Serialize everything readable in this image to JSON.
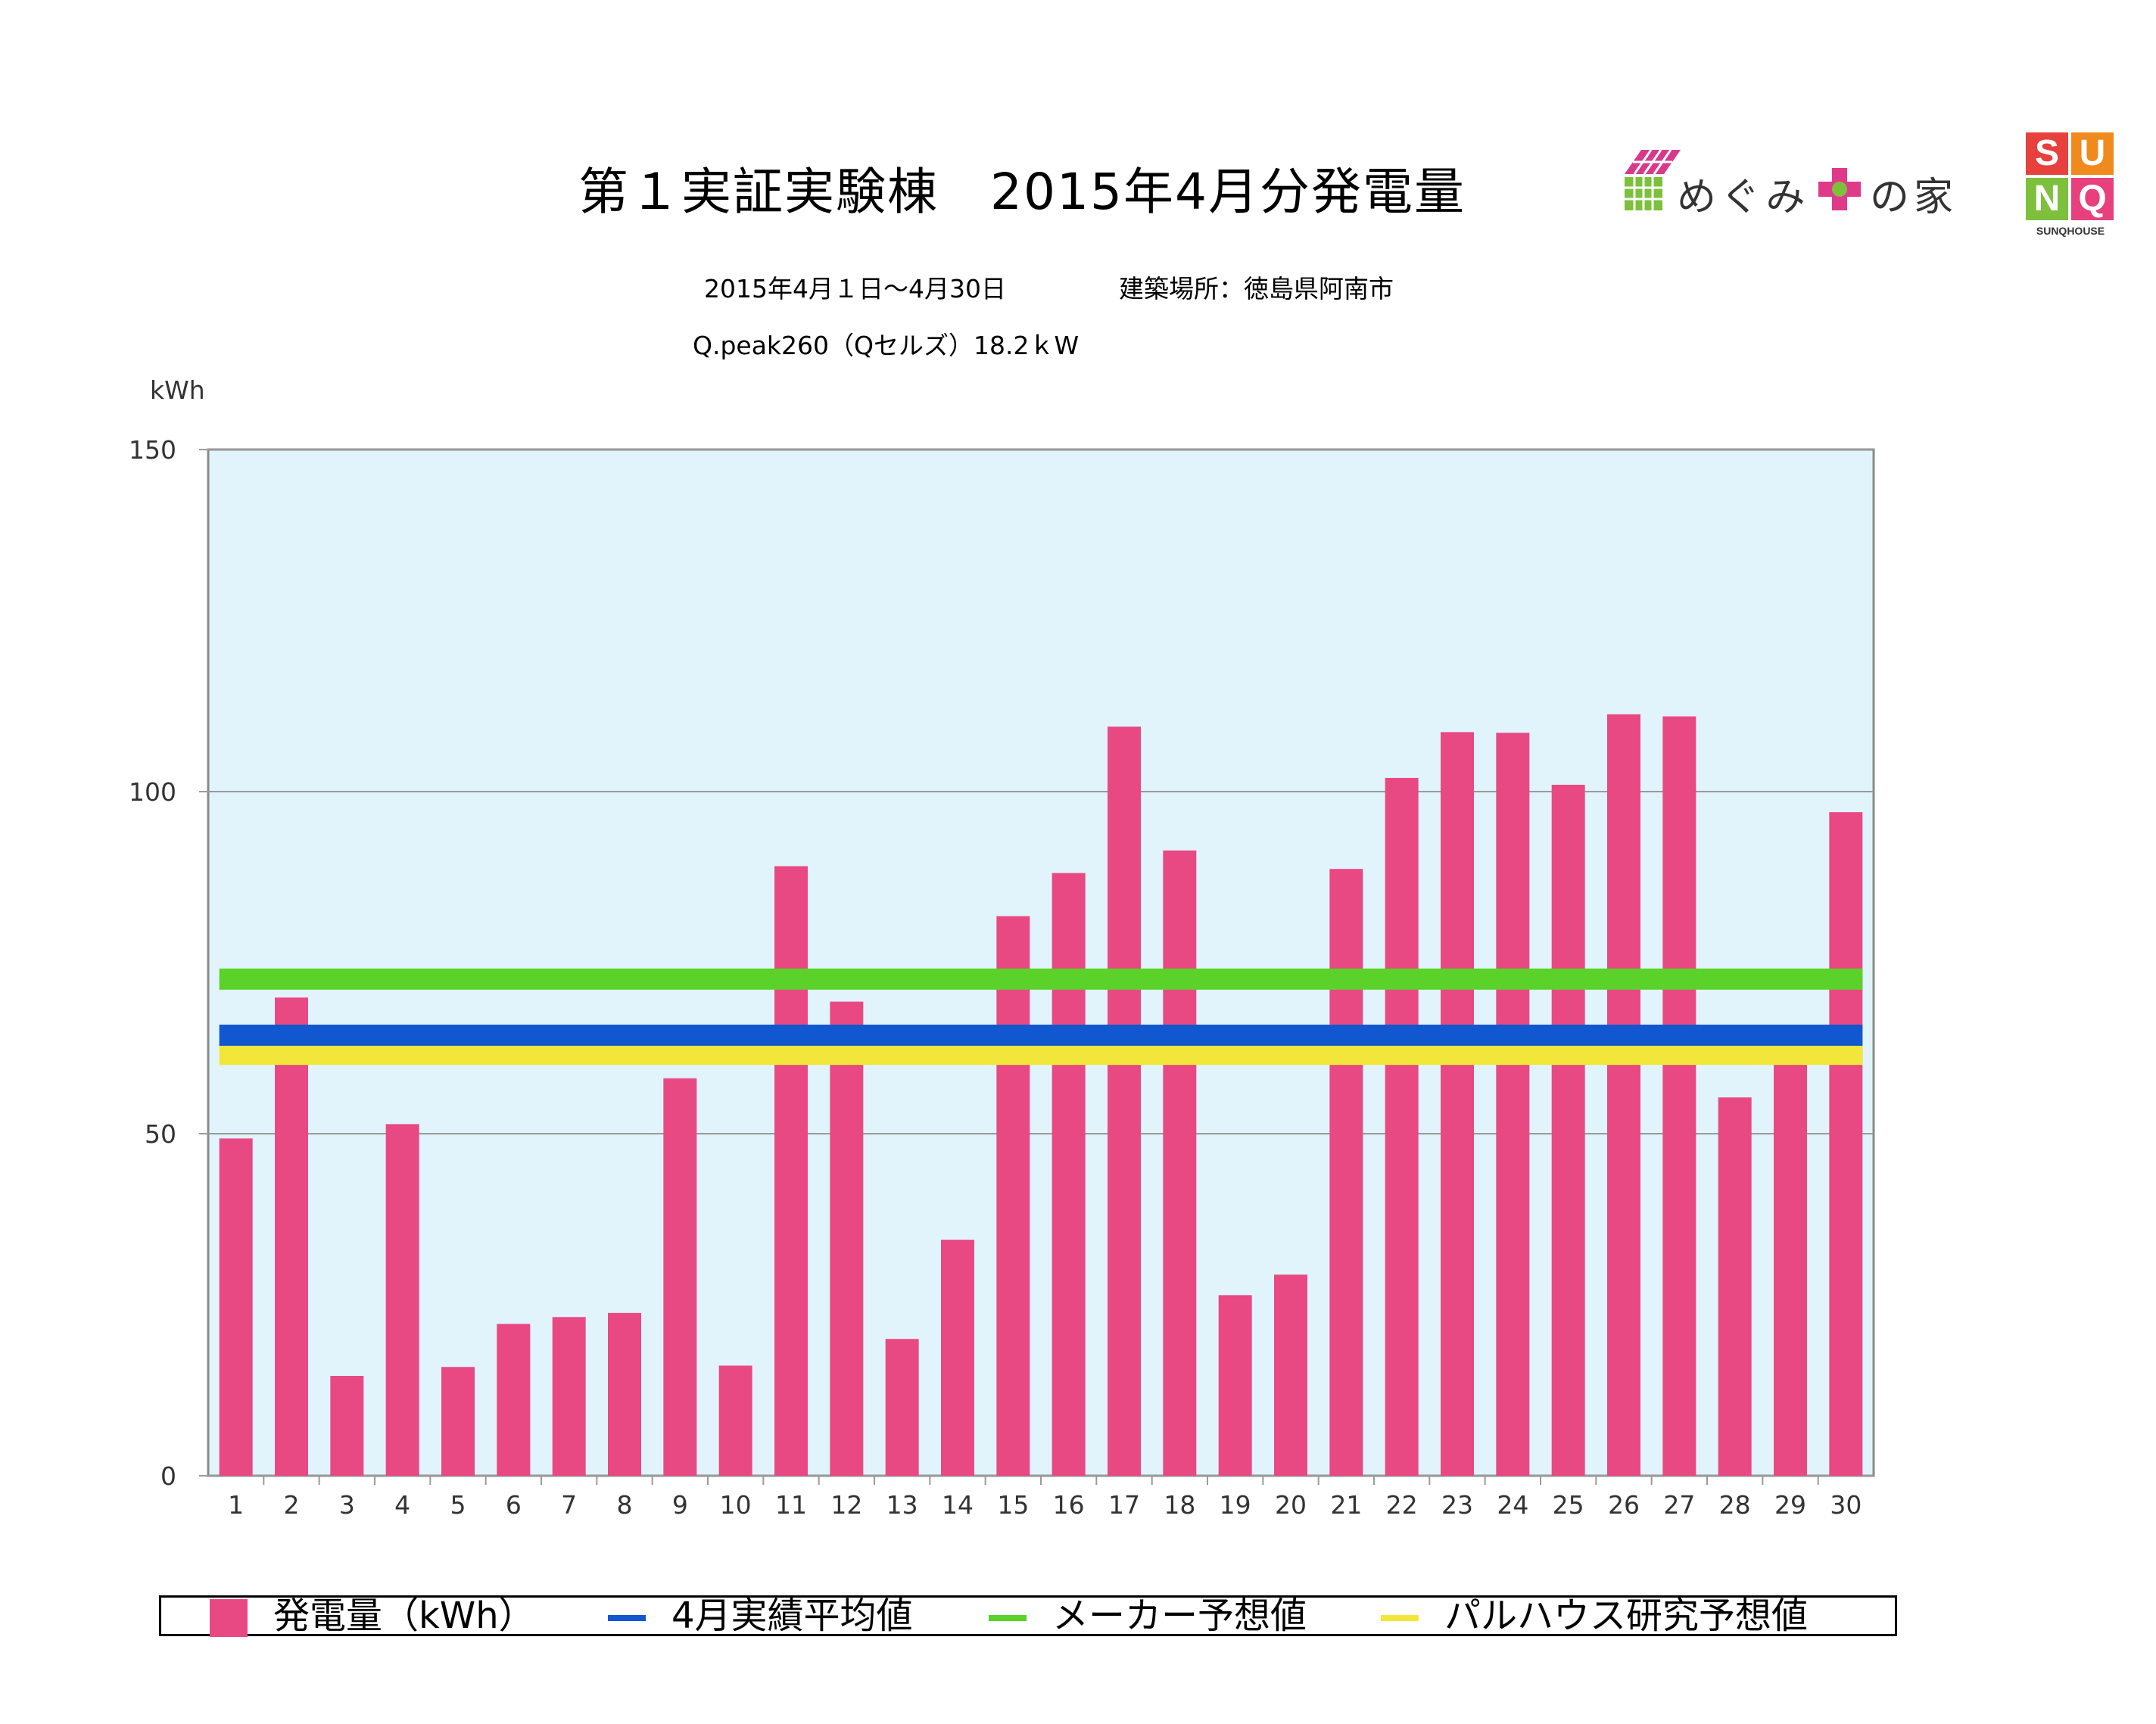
{
  "title": "第１実証実験棟　2015年4月分発電量",
  "period": "2015年4月１日～4月30日",
  "location": "建築場所：徳島県阿南市",
  "module": "Q.peak260（Qセルズ）18.2ｋW",
  "logo1": {
    "text_a": "めぐみ",
    "plus_text": "プラス",
    "text_b": "の家"
  },
  "logo2": {
    "letters": [
      "S",
      "U",
      "N",
      "Q"
    ],
    "sub": "SUNQHOUSE",
    "colors": [
      "#e8403c",
      "#f08a1c",
      "#7cc03c",
      "#e8407c"
    ]
  },
  "colors": {
    "plot_bg": "#e1f4fb",
    "bar": "#e94982",
    "avg": "#1158d0",
    "maker": "#5ad22a",
    "palhouse": "#f2e63a",
    "grid": "#9a9a9a"
  },
  "chart_data": {
    "type": "bar",
    "ylabel": "kWh",
    "ylim": [
      0,
      150
    ],
    "yticks": [
      0,
      50,
      100,
      150
    ],
    "grid": true,
    "categories": [
      "1",
      "2",
      "3",
      "4",
      "5",
      "6",
      "7",
      "8",
      "9",
      "10",
      "11",
      "12",
      "13",
      "14",
      "15",
      "16",
      "17",
      "18",
      "19",
      "20",
      "21",
      "22",
      "23",
      "24",
      "25",
      "26",
      "27",
      "28",
      "29",
      "30"
    ],
    "series": [
      {
        "name": "発電量（kWh）",
        "kind": "bar",
        "values": [
          49.3,
          69.9,
          14.6,
          51.4,
          15.9,
          22.2,
          23.2,
          23.8,
          58.1,
          16.1,
          89.1,
          69.3,
          20.0,
          34.5,
          81.8,
          88.1,
          109.5,
          91.4,
          26.4,
          29.4,
          88.7,
          102.0,
          108.7,
          108.6,
          101.0,
          111.3,
          111.0,
          55.3,
          61.3,
          97.0
        ]
      },
      {
        "name": "4月実績平均値",
        "kind": "line",
        "value": 64.4
      },
      {
        "name": "メーカー予想値",
        "kind": "line",
        "value": 72.6
      },
      {
        "name": "パルハウス研究予想値",
        "kind": "line",
        "value": 61.6
      }
    ],
    "legend_position": "bottom"
  }
}
